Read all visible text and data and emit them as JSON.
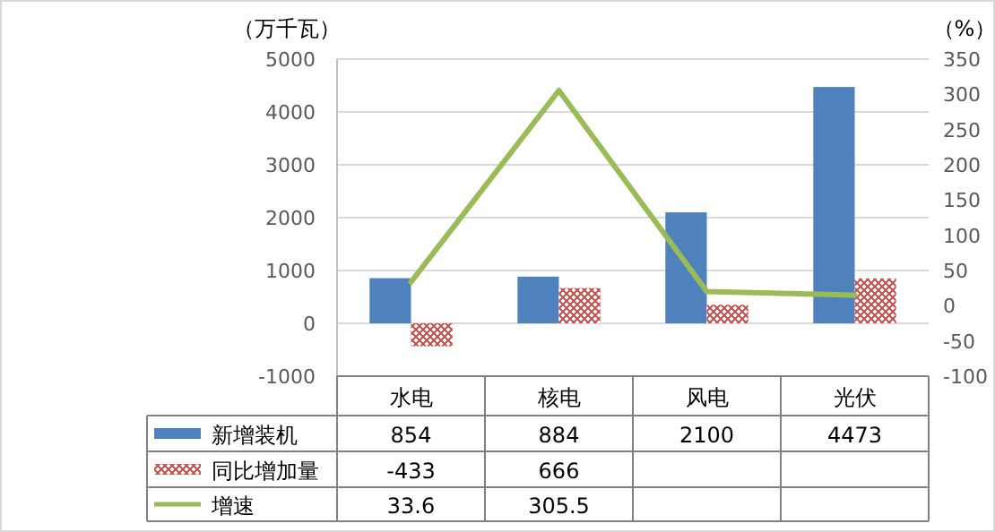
{
  "chart_data": {
    "type": "bar",
    "ylabel": "（万千瓦）",
    "y2label": "（%）",
    "categories": [
      "水电",
      "核电",
      "风电",
      "光伏"
    ],
    "series": [
      {
        "name": "新增装机",
        "color": "#4f81bd",
        "values": [
          854,
          884,
          2100,
          4473
        ],
        "value_labels": [
          "854",
          "884",
          "2100",
          "4473"
        ]
      },
      {
        "name": "同比增加量",
        "color": "#c0504d",
        "values": [
          -433,
          666,
          350,
          850
        ],
        "value_labels": [
          "-433",
          "666",
          null,
          null
        ]
      },
      {
        "name": "增速",
        "type": "line",
        "axis": "y2",
        "color": "#9bbb59",
        "values": [
          33.6,
          305.5,
          20,
          15
        ],
        "value_labels": [
          "33.6",
          "305.5",
          null,
          null
        ]
      }
    ],
    "ylim": [
      -1000,
      5000
    ],
    "yticks": [
      -1000,
      0,
      1000,
      2000,
      3000,
      4000,
      5000
    ],
    "y2lim": [
      -100,
      350
    ],
    "y2ticks": [
      -100,
      -50,
      0,
      50,
      100,
      150,
      200,
      250,
      300,
      350
    ],
    "grid": "y",
    "legend": "bottom"
  }
}
